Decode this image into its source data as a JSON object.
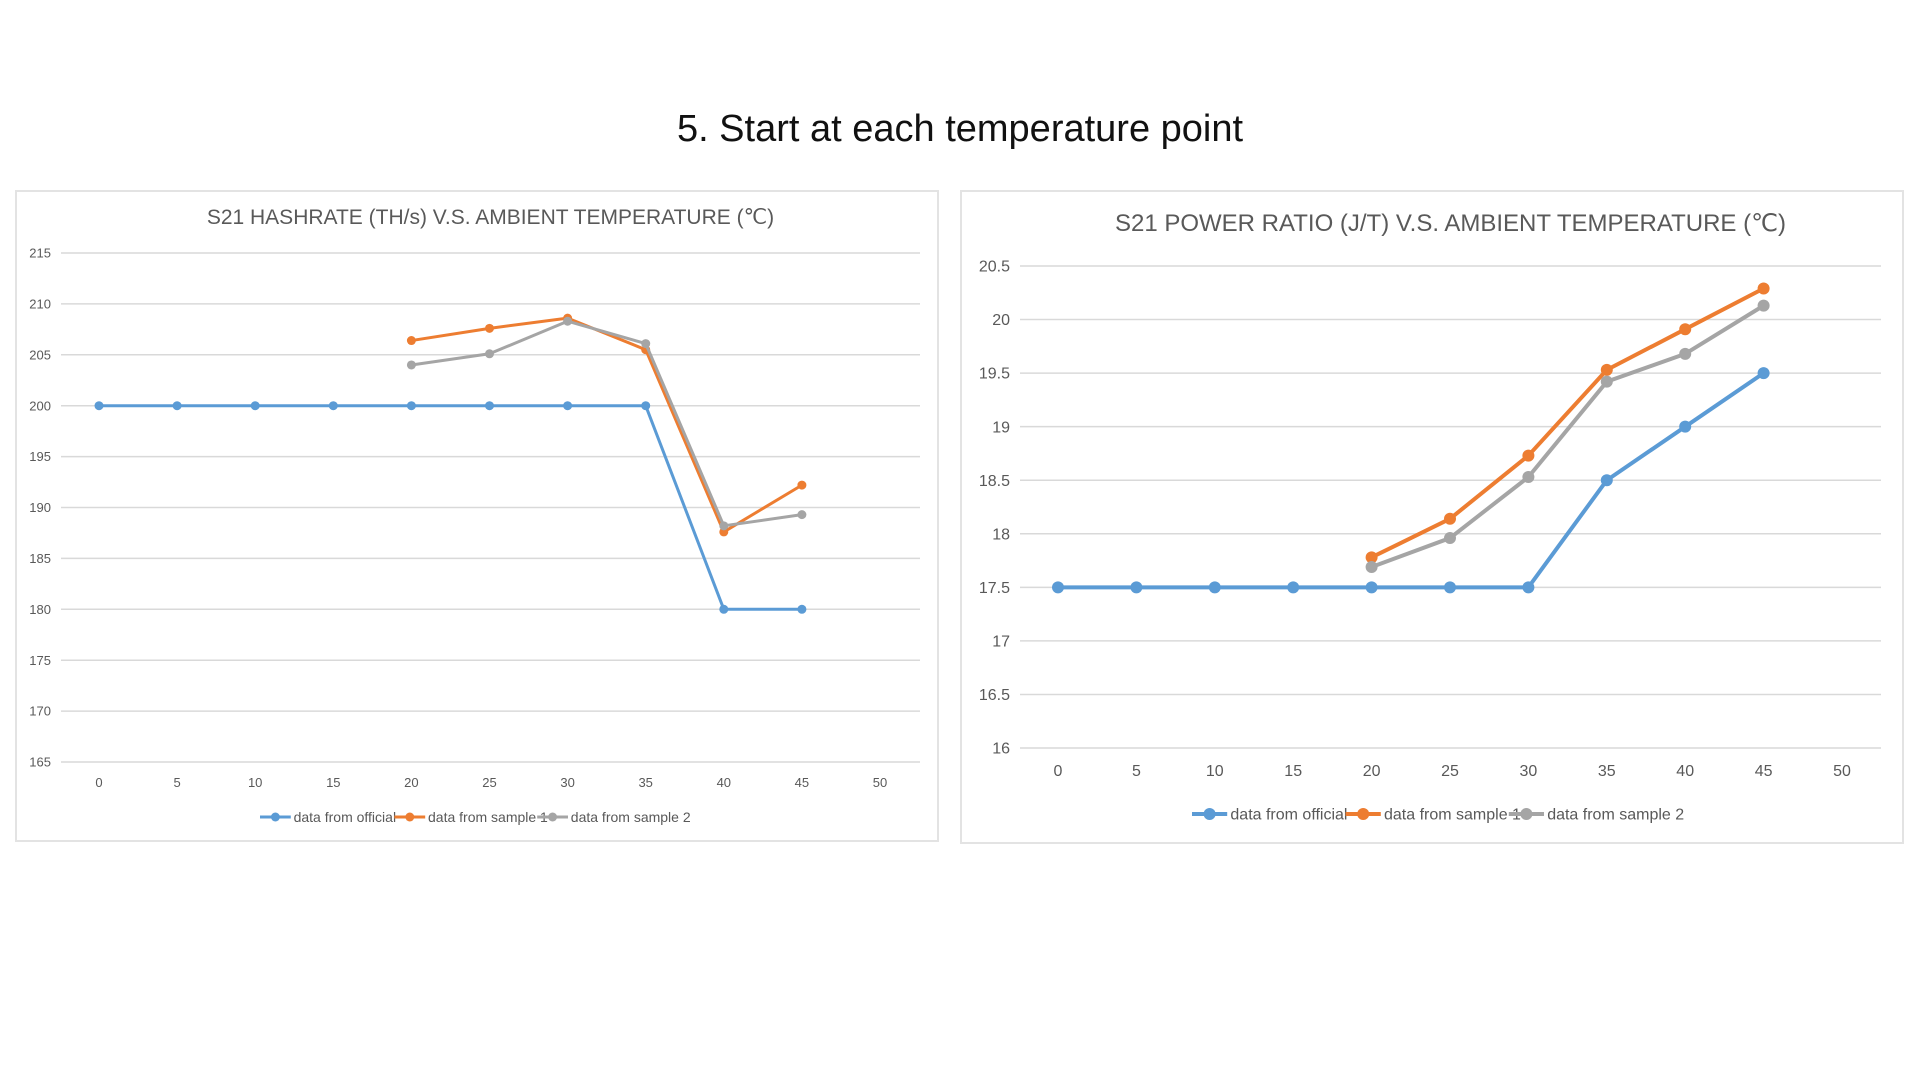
{
  "slide": {
    "title": "5. Start at each temperature point"
  },
  "colors": {
    "official": "#5B9BD5",
    "sample1": "#ED7D31",
    "sample2": "#A5A5A5"
  },
  "chart_data": [
    {
      "type": "line",
      "title": "S21 HASHRATE (TH/s) V.S. AMBIENT TEMPERATURE (℃)",
      "xlabel": "",
      "ylabel": "",
      "x": [
        0,
        5,
        10,
        15,
        20,
        25,
        30,
        35,
        40,
        45,
        50
      ],
      "xlim": [
        0,
        50
      ],
      "ylim": [
        165,
        215
      ],
      "yticks": [
        "215",
        "210",
        "205",
        "200",
        "195",
        "190",
        "185",
        "180",
        "175",
        "170",
        "165"
      ],
      "xticks": [
        "0",
        "5",
        "10",
        "15",
        "20",
        "25",
        "30",
        "35",
        "40",
        "45",
        "50"
      ],
      "grid": true,
      "legend": "bottom",
      "series": [
        {
          "name": "data from official",
          "color": "#5B9BD5",
          "points": [
            [
              0,
              200
            ],
            [
              5,
              200
            ],
            [
              10,
              200
            ],
            [
              15,
              200
            ],
            [
              20,
              200
            ],
            [
              25,
              200
            ],
            [
              30,
              200
            ],
            [
              35,
              200
            ],
            [
              40,
              180
            ],
            [
              45,
              180
            ]
          ]
        },
        {
          "name": "data from sample 1",
          "color": "#ED7D31",
          "points": [
            [
              20,
              206.4
            ],
            [
              25,
              207.6
            ],
            [
              30,
              208.6
            ],
            [
              35,
              205.5
            ],
            [
              40,
              187.6
            ],
            [
              45,
              192.2
            ]
          ]
        },
        {
          "name": "data from sample 2",
          "color": "#A5A5A5",
          "points": [
            [
              20,
              204.0
            ],
            [
              25,
              205.1
            ],
            [
              30,
              208.3
            ],
            [
              35,
              206.1
            ],
            [
              40,
              188.2
            ],
            [
              45,
              189.3
            ]
          ]
        }
      ]
    },
    {
      "type": "line",
      "title": "S21 POWER RATIO (J/T) V.S. AMBIENT TEMPERATURE (℃)",
      "xlabel": "",
      "ylabel": "",
      "x": [
        0,
        5,
        10,
        15,
        20,
        25,
        30,
        35,
        40,
        45,
        50
      ],
      "xlim": [
        0,
        50
      ],
      "ylim": [
        16,
        20.5
      ],
      "yticks": [
        "20.5",
        "20",
        "19.5",
        "19",
        "18.5",
        "18",
        "17.5",
        "17",
        "16.5",
        "16"
      ],
      "xticks": [
        "0",
        "5",
        "10",
        "15",
        "20",
        "25",
        "30",
        "35",
        "40",
        "45",
        "50"
      ],
      "grid": true,
      "legend": "bottom",
      "series": [
        {
          "name": "data from official",
          "color": "#5B9BD5",
          "points": [
            [
              0,
              17.5
            ],
            [
              5,
              17.5
            ],
            [
              10,
              17.5
            ],
            [
              15,
              17.5
            ],
            [
              20,
              17.5
            ],
            [
              25,
              17.5
            ],
            [
              30,
              17.5
            ],
            [
              35,
              18.5
            ],
            [
              40,
              19.0
            ],
            [
              45,
              19.5
            ]
          ]
        },
        {
          "name": "data from sample 1",
          "color": "#ED7D31",
          "points": [
            [
              20,
              17.78
            ],
            [
              25,
              18.14
            ],
            [
              30,
              18.73
            ],
            [
              35,
              19.53
            ],
            [
              40,
              19.91
            ],
            [
              45,
              20.29
            ]
          ]
        },
        {
          "name": "data from sample 2",
          "color": "#A5A5A5",
          "points": [
            [
              20,
              17.69
            ],
            [
              25,
              17.96
            ],
            [
              30,
              18.53
            ],
            [
              35,
              19.42
            ],
            [
              40,
              19.68
            ],
            [
              45,
              20.13
            ]
          ]
        }
      ]
    }
  ]
}
